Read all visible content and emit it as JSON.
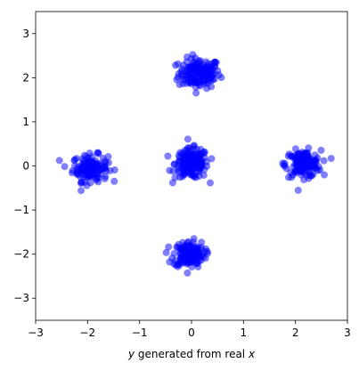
{
  "chart_data": {
    "type": "scatter",
    "title": "",
    "xlabel": {
      "prefix": "y",
      "middle": " generated from real ",
      "suffix": "x"
    },
    "ylabel": "",
    "xlim": [
      -3,
      3
    ],
    "ylim": [
      -3.5,
      3.5
    ],
    "x_ticks": [
      -3,
      -2,
      -1,
      0,
      1,
      2,
      3
    ],
    "y_ticks": [
      -3,
      -2,
      -1,
      0,
      1,
      2,
      3
    ],
    "grid": false,
    "legend": "none",
    "colors": {
      "points": "#0000ff",
      "point_opacity": 0.5,
      "frame": "#000000"
    },
    "clusters": [
      {
        "center": [
          0.15,
          2.1
        ],
        "spread": [
          0.2,
          0.17
        ],
        "count": 160
      },
      {
        "center": [
          -1.95,
          -0.05
        ],
        "spread": [
          0.17,
          0.15
        ],
        "count": 140
      },
      {
        "center": [
          0.0,
          0.05
        ],
        "spread": [
          0.16,
          0.17
        ],
        "count": 180
      },
      {
        "center": [
          2.15,
          0.05
        ],
        "spread": [
          0.17,
          0.15
        ],
        "count": 140
      },
      {
        "center": [
          -0.05,
          -2.0
        ],
        "spread": [
          0.15,
          0.15
        ],
        "count": 150
      }
    ]
  }
}
